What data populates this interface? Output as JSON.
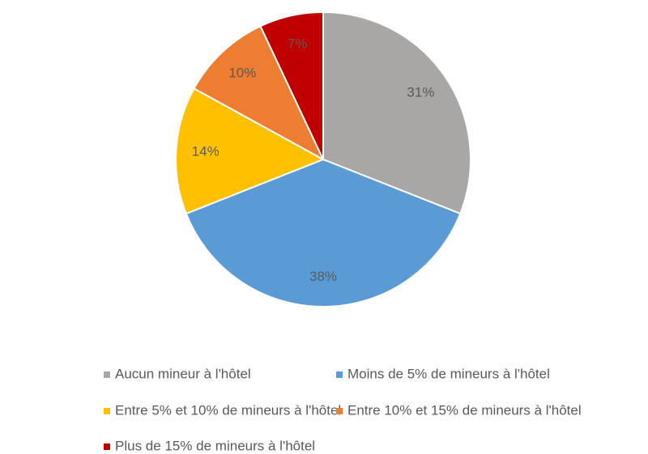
{
  "chart_data": {
    "type": "pie",
    "categories": [
      "Aucun mineur à l'hôtel",
      "Moins de 5% de mineurs à l'hôtel",
      "Entre 5% et 10% de mineurs à l'hôtel",
      "Entre 10% et 15% de mineurs à l'hôtel",
      "Plus de 15% de mineurs à l'hôtel"
    ],
    "values": [
      31,
      38,
      14,
      10,
      7
    ],
    "value_labels": [
      "31%",
      "38%",
      "14%",
      "10%",
      "7%"
    ],
    "colors": [
      "#a9a7a5",
      "#5b9bd5",
      "#ffc000",
      "#ed7d31",
      "#c00000"
    ],
    "legend": "bottom"
  }
}
